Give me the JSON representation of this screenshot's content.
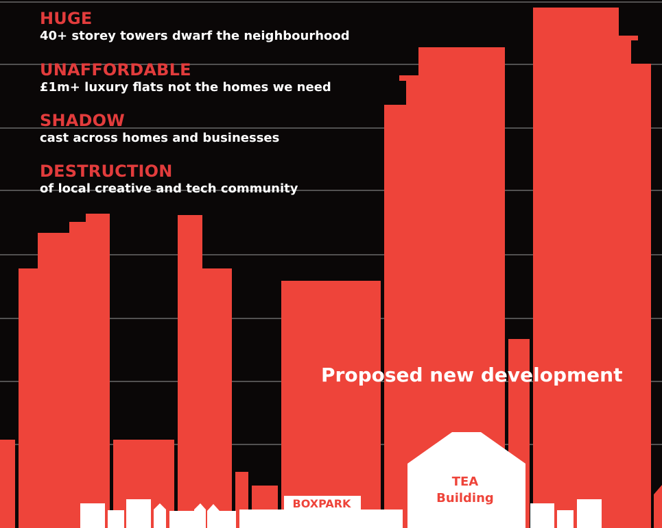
{
  "colors": {
    "background": "#0a0707",
    "tower": "#ee443a",
    "heading": "#e23c3c",
    "gridline": "#6a6a6a",
    "low_building": "#ffffff",
    "label_text": "#ffffff"
  },
  "points": [
    {
      "id": "huge",
      "heading": "HUGE",
      "text": "40+ storey towers dwarf the neighbourhood"
    },
    {
      "id": "unaffordable",
      "heading": "UNAFFORDABLE",
      "text": "£1m+ luxury flats not the homes we need"
    },
    {
      "id": "shadow",
      "heading": "SHADOW",
      "text": "cast across homes and businesses"
    },
    {
      "id": "destruction",
      "heading": "DESTRUCTION",
      "text": "of local creative and tech community"
    }
  ],
  "labels": {
    "development": "Proposed new development",
    "tea_building": "TEA\nBuilding",
    "boxpark": "BOXPARK"
  },
  "icons": {
    "skyline": "skyline-illustration"
  }
}
